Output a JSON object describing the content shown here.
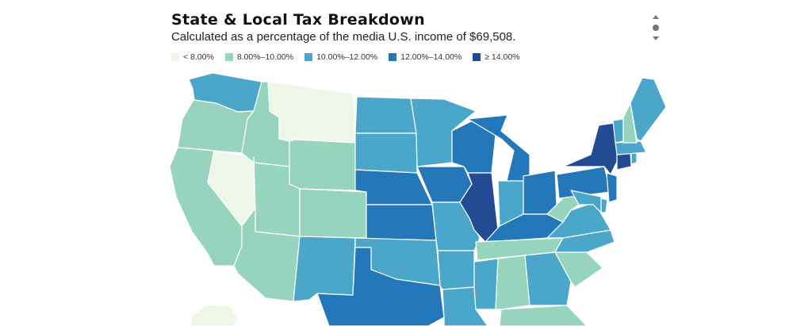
{
  "header": {
    "title": "State & Local Tax Breakdown",
    "subtitle": "Calculated as a percentage of the media U.S. income of $69,508."
  },
  "legend": [
    {
      "label": "< 8.00%",
      "color": "#eef7e7"
    },
    {
      "label": "8.00%–10.00%",
      "color": "#96d4bd"
    },
    {
      "label": "10.00%–12.00%",
      "color": "#4ba7ca"
    },
    {
      "label": "12.00%–14.00%",
      "color": "#2477b9"
    },
    {
      "label": "≥ 14.00%",
      "color": "#234b93"
    }
  ],
  "controls": {
    "scroll_icon": "scroll-up-down-icon"
  },
  "states": [
    {
      "id": "WA",
      "bin": 2
    },
    {
      "id": "OR",
      "bin": 1
    },
    {
      "id": "CA",
      "bin": 1
    },
    {
      "id": "NV",
      "bin": 0
    },
    {
      "id": "ID",
      "bin": 1
    },
    {
      "id": "MT",
      "bin": 0
    },
    {
      "id": "WY",
      "bin": 1
    },
    {
      "id": "UT",
      "bin": 1
    },
    {
      "id": "AZ",
      "bin": 1
    },
    {
      "id": "CO",
      "bin": 1
    },
    {
      "id": "NM",
      "bin": 2
    },
    {
      "id": "ND",
      "bin": 2
    },
    {
      "id": "SD",
      "bin": 2
    },
    {
      "id": "NE",
      "bin": 3
    },
    {
      "id": "KS",
      "bin": 3
    },
    {
      "id": "OK",
      "bin": 2
    },
    {
      "id": "TX",
      "bin": 3
    },
    {
      "id": "MN",
      "bin": 2
    },
    {
      "id": "IA",
      "bin": 3
    },
    {
      "id": "MO",
      "bin": 2
    },
    {
      "id": "AR",
      "bin": 2
    },
    {
      "id": "LA",
      "bin": 2
    },
    {
      "id": "WI",
      "bin": 3
    },
    {
      "id": "IL",
      "bin": 4
    },
    {
      "id": "MI",
      "bin": 3
    },
    {
      "id": "IN",
      "bin": 2
    },
    {
      "id": "OH",
      "bin": 3
    },
    {
      "id": "KY",
      "bin": 3
    },
    {
      "id": "TN",
      "bin": 1
    },
    {
      "id": "MS",
      "bin": 2
    },
    {
      "id": "AL",
      "bin": 1
    },
    {
      "id": "GA",
      "bin": 2
    },
    {
      "id": "FL",
      "bin": 1
    },
    {
      "id": "SC",
      "bin": 1
    },
    {
      "id": "NC",
      "bin": 2
    },
    {
      "id": "VA",
      "bin": 2
    },
    {
      "id": "WV",
      "bin": 1
    },
    {
      "id": "PA",
      "bin": 3
    },
    {
      "id": "NY",
      "bin": 4
    },
    {
      "id": "NJ",
      "bin": 3
    },
    {
      "id": "DE",
      "bin": 2
    },
    {
      "id": "MD",
      "bin": 2
    },
    {
      "id": "CT",
      "bin": 4
    },
    {
      "id": "RI",
      "bin": 2
    },
    {
      "id": "MA",
      "bin": 2
    },
    {
      "id": "VT",
      "bin": 2
    },
    {
      "id": "NH",
      "bin": 1
    },
    {
      "id": "ME",
      "bin": 2
    },
    {
      "id": "AK",
      "bin": 0
    }
  ]
}
